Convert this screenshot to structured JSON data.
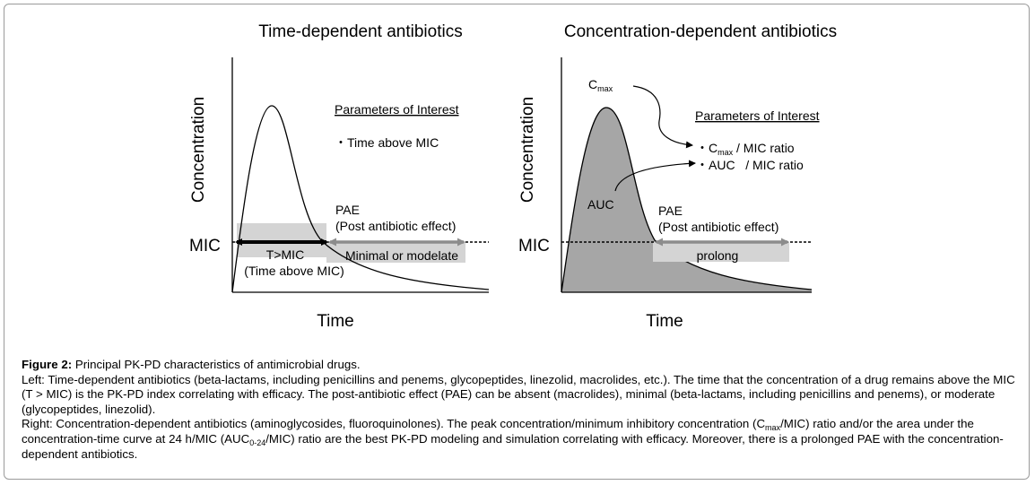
{
  "left_panel": {
    "title": "Time-dependent antibiotics",
    "y_label": "Concentration",
    "x_label": "Time",
    "mic_label": "MIC",
    "params_heading": "Parameters of Interest",
    "param_1": "・Time above MIC",
    "pae_label": "PAE",
    "pae_desc": "(Post antibiotic effect)",
    "tmic_label": "T>MIC",
    "tmic_desc": "(Time above MIC)",
    "pae_extent": "Minimal or modelate"
  },
  "right_panel": {
    "title": "Concentration-dependent antibiotics",
    "y_label": "Concentration",
    "x_label": "Time",
    "mic_label": "MIC",
    "cmax_main": "C",
    "cmax_sub": "max",
    "params_heading": "Parameters of Interest",
    "param_1_pre": "・C",
    "param_1_sub": "max",
    "param_1_post": " / MIC ratio",
    "param_2": "・AUC   / MIC ratio",
    "auc_label": "AUC",
    "pae_label": "PAE",
    "pae_desc": "(Post antibiotic effect)",
    "pae_extent": "prolong"
  },
  "caption": {
    "figure_label": "Figure 2:",
    "figure_title": " Principal PK-PD characteristics of antimicrobial drugs.",
    "left_text": "Left: Time-dependent antibiotics (beta-lactams, including penicillins and penems, glycopeptides, linezolid, macrolides, etc.). The time that the concentration of a drug remains above the MIC (T > MIC) is the PK-PD index correlating with efficacy. The post-antibiotic effect (PAE) can be absent (macrolides), minimal (beta-lactams, including penicillins and penems), or moderate (glycopeptides, linezolid).",
    "right_text_1": "Right: Concentration-dependent antibiotics (aminoglycosides, fluoroquinolones). The peak concentration/minimum inhibitory concentration (C",
    "right_sub_1": "max",
    "right_text_2": "/MIC) ratio and/or the area under the concentration-time curve at 24 h/MIC (AUC",
    "right_sub_2": "0-24",
    "right_text_3": "/MIC) ratio are the best PK-PD modeling and simulation correlating with efficacy. Moreover, there is a prolonged PAE with the concentration-dependent antibiotics."
  },
  "colors": {
    "band": "#d4d4d4",
    "auc_fill": "#a6a6a6",
    "pae_arrow": "#8c8c8c"
  }
}
